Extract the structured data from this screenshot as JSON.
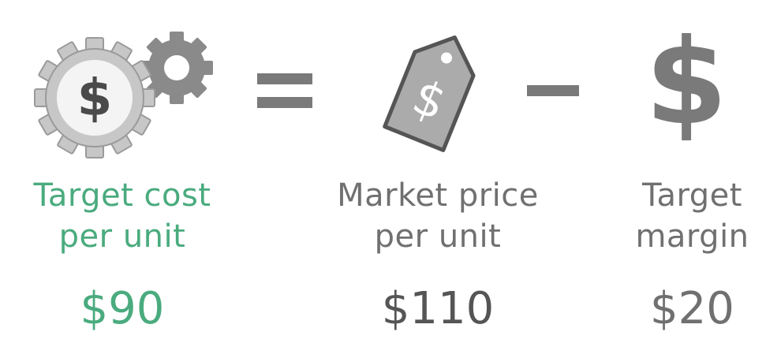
{
  "equation": {
    "equals_symbol": "=",
    "minus_symbol": "−",
    "terms": [
      {
        "icon": "gears-dollar-icon",
        "label_line1": "Target cost",
        "label_line2": "per unit",
        "value": "$90",
        "color": "#4aab7e"
      },
      {
        "icon": "price-tag-dollar-icon",
        "label_line1": "Market price",
        "label_line2": "per unit",
        "value": "$110",
        "color": "#707070"
      },
      {
        "icon": "dollar-sign-icon",
        "label_line1": "Target",
        "label_line2": "margin",
        "value": "$20",
        "color": "#707070"
      }
    ]
  }
}
